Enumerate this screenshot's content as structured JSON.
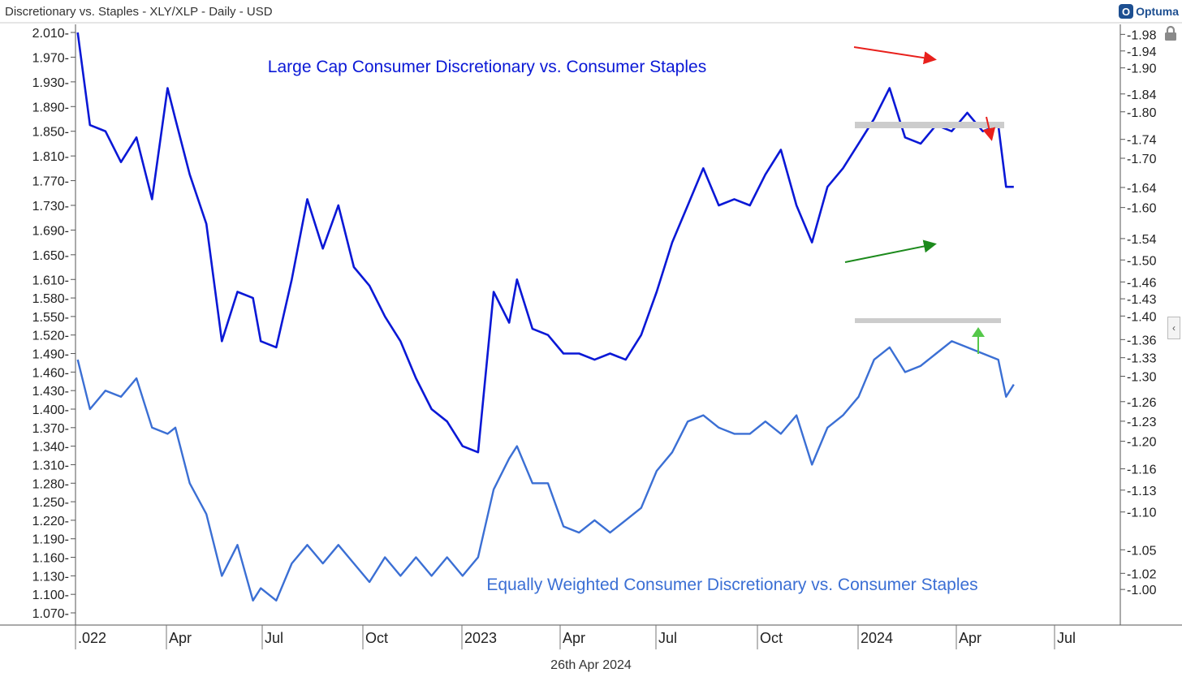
{
  "header": {
    "title": "Discretionary vs. Staples - XLY/XLP - Daily - USD"
  },
  "brand": {
    "logo_text": "Optuma",
    "logo_mark": "O"
  },
  "footer": {
    "date": "26th Apr 2024"
  },
  "colors": {
    "series1": "#0a18d6",
    "series2": "#3b6fd4",
    "red_arrow": "#e8201c",
    "green_arrow": "#1c8a1c",
    "support": "#cccccc",
    "green_up": "#55c84a"
  },
  "chart_data": {
    "type": "line",
    "x_ticks": [
      ".022",
      "Apr",
      "Jul",
      "Oct",
      "2023",
      "Apr",
      "Jul",
      "Oct",
      "2024",
      "Apr",
      "Jul"
    ],
    "x_range": [
      "2022-01-01",
      "2024-07-31"
    ],
    "left_axis": {
      "ticks": [
        "2.010",
        "1.970",
        "1.930",
        "1.890",
        "1.850",
        "1.810",
        "1.770",
        "1.730",
        "1.690",
        "1.650",
        "1.610",
        "1.580",
        "1.550",
        "1.520",
        "1.490",
        "1.460",
        "1.430",
        "1.400",
        "1.370",
        "1.340",
        "1.310",
        "1.280",
        "1.250",
        "1.220",
        "1.190",
        "1.160",
        "1.130",
        "1.100",
        "1.070"
      ]
    },
    "right_axis": {
      "ticks": [
        "1.98",
        "1.94",
        "1.90",
        "1.84",
        "1.80",
        "1.74",
        "1.70",
        "1.64",
        "1.60",
        "1.54",
        "1.50",
        "1.46",
        "1.43",
        "1.40",
        "1.36",
        "1.33",
        "1.30",
        "1.26",
        "1.23",
        "1.20",
        "1.16",
        "1.13",
        "1.10",
        "1.05",
        "1.02",
        "1.00"
      ]
    },
    "series": [
      {
        "name": "Large Cap Consumer Discretionary vs. Consumer Staples",
        "label": "Large Cap Consumer Discretionary vs. Consumer Staples",
        "dates": [
          "2022-01-03",
          "2022-01-14",
          "2022-01-28",
          "2022-02-11",
          "2022-02-25",
          "2022-03-11",
          "2022-03-25",
          "2022-04-01",
          "2022-04-14",
          "2022-04-29",
          "2022-05-13",
          "2022-05-27",
          "2022-06-10",
          "2022-06-17",
          "2022-07-01",
          "2022-07-15",
          "2022-07-29",
          "2022-08-12",
          "2022-08-26",
          "2022-09-09",
          "2022-09-23",
          "2022-10-07",
          "2022-10-21",
          "2022-11-04",
          "2022-11-18",
          "2022-12-02",
          "2022-12-16",
          "2022-12-30",
          "2023-01-13",
          "2023-01-27",
          "2023-02-03",
          "2023-02-17",
          "2023-03-03",
          "2023-03-17",
          "2023-03-31",
          "2023-04-14",
          "2023-04-28",
          "2023-05-12",
          "2023-05-26",
          "2023-06-09",
          "2023-06-23",
          "2023-07-07",
          "2023-07-21",
          "2023-08-04",
          "2023-08-18",
          "2023-09-01",
          "2023-09-15",
          "2023-09-29",
          "2023-10-13",
          "2023-10-27",
          "2023-11-10",
          "2023-11-24",
          "2023-12-08",
          "2023-12-22",
          "2024-01-05",
          "2024-01-19",
          "2024-02-02",
          "2024-02-16",
          "2024-03-01",
          "2024-03-15",
          "2024-03-29",
          "2024-04-12",
          "2024-04-19",
          "2024-04-26"
        ],
        "values": [
          2.01,
          1.86,
          1.85,
          1.8,
          1.84,
          1.74,
          1.92,
          1.87,
          1.78,
          1.7,
          1.51,
          1.59,
          1.58,
          1.51,
          1.5,
          1.61,
          1.74,
          1.66,
          1.73,
          1.63,
          1.6,
          1.55,
          1.51,
          1.45,
          1.4,
          1.38,
          1.34,
          1.33,
          1.59,
          1.54,
          1.61,
          1.53,
          1.52,
          1.49,
          1.49,
          1.48,
          1.49,
          1.48,
          1.52,
          1.59,
          1.67,
          1.73,
          1.79,
          1.73,
          1.74,
          1.73,
          1.78,
          1.82,
          1.73,
          1.67,
          1.76,
          1.79,
          1.83,
          1.87,
          1.92,
          1.84,
          1.83,
          1.86,
          1.85,
          1.88,
          1.85,
          1.86,
          1.76,
          1.76
        ]
      },
      {
        "name": "Equally Weighted Consumer Discretionary vs. Consumer Staples",
        "label": "Equally Weighted Consumer Discretionary vs. Consumer Staples",
        "dates": [
          "2022-01-03",
          "2022-01-14",
          "2022-01-28",
          "2022-02-11",
          "2022-02-25",
          "2022-03-11",
          "2022-03-25",
          "2022-04-01",
          "2022-04-14",
          "2022-04-29",
          "2022-05-13",
          "2022-05-27",
          "2022-06-10",
          "2022-06-17",
          "2022-07-01",
          "2022-07-15",
          "2022-07-29",
          "2022-08-12",
          "2022-08-26",
          "2022-09-09",
          "2022-09-23",
          "2022-10-07",
          "2022-10-21",
          "2022-11-04",
          "2022-11-18",
          "2022-12-02",
          "2022-12-16",
          "2022-12-30",
          "2023-01-13",
          "2023-01-27",
          "2023-02-03",
          "2023-02-17",
          "2023-03-03",
          "2023-03-17",
          "2023-03-31",
          "2023-04-14",
          "2023-04-28",
          "2023-05-12",
          "2023-05-26",
          "2023-06-09",
          "2023-06-23",
          "2023-07-07",
          "2023-07-21",
          "2023-08-04",
          "2023-08-18",
          "2023-09-01",
          "2023-09-15",
          "2023-09-29",
          "2023-10-13",
          "2023-10-27",
          "2023-11-10",
          "2023-11-24",
          "2023-12-08",
          "2023-12-22",
          "2024-01-05",
          "2024-01-19",
          "2024-02-02",
          "2024-02-16",
          "2024-03-01",
          "2024-03-15",
          "2024-03-29",
          "2024-04-12",
          "2024-04-19",
          "2024-04-26"
        ],
        "values": [
          1.48,
          1.4,
          1.43,
          1.42,
          1.45,
          1.37,
          1.36,
          1.37,
          1.28,
          1.23,
          1.13,
          1.18,
          1.09,
          1.11,
          1.09,
          1.15,
          1.18,
          1.15,
          1.18,
          1.15,
          1.12,
          1.16,
          1.13,
          1.16,
          1.13,
          1.16,
          1.13,
          1.16,
          1.27,
          1.32,
          1.34,
          1.28,
          1.28,
          1.21,
          1.2,
          1.22,
          1.2,
          1.22,
          1.24,
          1.3,
          1.33,
          1.38,
          1.39,
          1.37,
          1.36,
          1.36,
          1.38,
          1.36,
          1.39,
          1.31,
          1.37,
          1.39,
          1.42,
          1.48,
          1.5,
          1.46,
          1.47,
          1.49,
          1.51,
          1.5,
          1.49,
          1.48,
          1.42,
          1.44
        ]
      }
    ]
  }
}
